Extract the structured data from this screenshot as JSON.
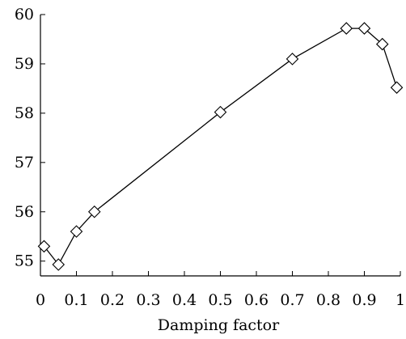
{
  "chart_data": {
    "type": "line",
    "title": "",
    "xlabel": "Damping factor",
    "ylabel": "",
    "xlim": [
      0,
      1
    ],
    "ylim": [
      54.7,
      60
    ],
    "x_ticks": [
      0,
      0.1,
      0.2,
      0.3,
      0.4,
      0.5,
      0.6,
      0.7,
      0.8,
      0.9,
      1
    ],
    "x_tick_labels": [
      "0",
      "0.1",
      "0.2",
      "0.3",
      "0.4",
      "0.5",
      "0.6",
      "0.7",
      "0.8",
      "0.9",
      "1"
    ],
    "y_ticks": [
      55,
      56,
      57,
      58,
      59,
      60
    ],
    "y_tick_labels": [
      "55",
      "56",
      "57",
      "58",
      "59",
      "60"
    ],
    "grid": false,
    "legend": "none",
    "marker": "diamond",
    "series": [
      {
        "x": [
          0.01,
          0.05,
          0.1,
          0.15,
          0.5,
          0.7,
          0.85,
          0.9,
          0.95,
          0.99
        ],
        "y": [
          55.3,
          54.93,
          55.6,
          56.0,
          58.02,
          59.1,
          59.72,
          59.72,
          59.4,
          58.52
        ]
      }
    ]
  }
}
